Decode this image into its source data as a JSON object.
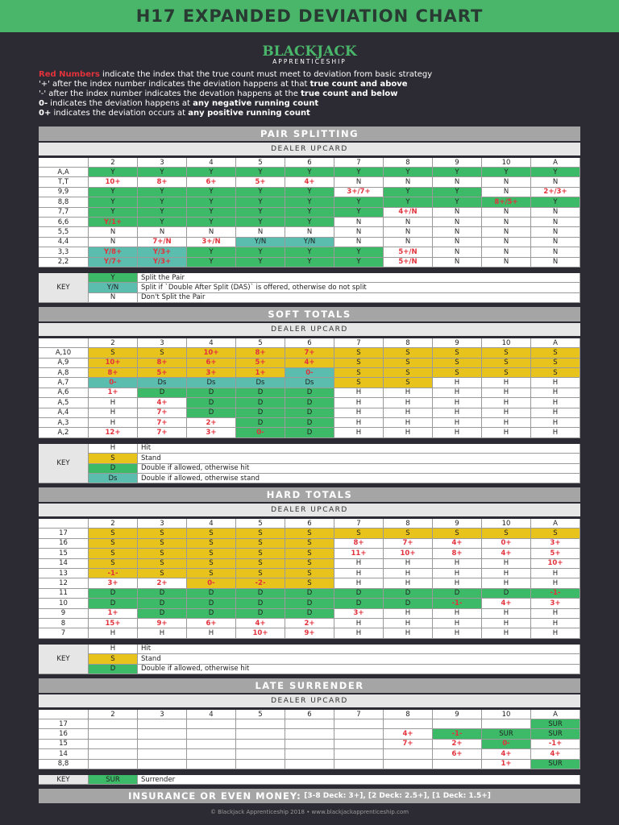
{
  "header": {
    "title": "H17 EXPANDED DEVIATION CHART",
    "logo": "BLACKJACK",
    "logo_sub": "APPRENTICESHIP"
  },
  "notes": [
    [
      "Red Numbers",
      " indicate the index that the true count must meet to deviation from basic strategy"
    ],
    [
      "'+' after the index number indicates the deviation happens at that ",
      "true count and above"
    ],
    [
      "'-' after the index number indicates the devation happens at the ",
      "true count and below"
    ],
    [
      "0-",
      " indicates the deviation happens at ",
      "any negative running count"
    ],
    [
      "0+",
      " indicates the deviation occurs at ",
      "any positive running count"
    ]
  ],
  "fill_colors": {
    "G": "#3dba68",
    "Y": "#e8c31c",
    "T": "#5bbdae",
    "W": "#ffffff"
  },
  "sections": [
    {
      "title": "PAIR SPLITTING",
      "subtitle": "DEALER UPCARD",
      "columns": [
        "2",
        "3",
        "4",
        "5",
        "6",
        "7",
        "8",
        "9",
        "10",
        "A"
      ],
      "rows": [
        {
          "label": "A,A",
          "cells": [
            "Y",
            "Y",
            "Y",
            "Y",
            "Y",
            "Y",
            "Y",
            "Y",
            "Y",
            "Y"
          ],
          "fills": "GGGGGGGGGG"
        },
        {
          "label": "T,T",
          "cells": [
            "10+",
            "8+",
            "6+",
            "5+",
            "4+",
            "N",
            "N",
            "N",
            "N",
            "N"
          ],
          "fills": "WWWWWWWWWW"
        },
        {
          "label": "9,9",
          "cells": [
            "Y",
            "Y",
            "Y",
            "Y",
            "Y",
            "3+/7+",
            "Y",
            "Y",
            "N",
            "2+/3+"
          ],
          "fills": "GGGGGWGGWW"
        },
        {
          "label": "8,8",
          "cells": [
            "Y",
            "Y",
            "Y",
            "Y",
            "Y",
            "Y",
            "Y",
            "Y",
            "8+/5+",
            "Y"
          ],
          "fills": "GGGGGGGGGG"
        },
        {
          "label": "7,7",
          "cells": [
            "Y",
            "Y",
            "Y",
            "Y",
            "Y",
            "Y",
            "4+/N",
            "N",
            "N",
            "N"
          ],
          "fills": "GGGGGGWWWW"
        },
        {
          "label": "6,6",
          "cells": [
            "Y/1+",
            "Y",
            "Y",
            "Y",
            "Y",
            "N",
            "N",
            "N",
            "N",
            "N"
          ],
          "fills": "GGGGGWWWWW"
        },
        {
          "label": "5,5",
          "cells": [
            "N",
            "N",
            "N",
            "N",
            "N",
            "N",
            "N",
            "N",
            "N",
            "N"
          ],
          "fills": "WWWWWWWWWW"
        },
        {
          "label": "4,4",
          "cells": [
            "N",
            "7+/N",
            "3+/N",
            "Y/N",
            "Y/N",
            "N",
            "N",
            "N",
            "N",
            "N"
          ],
          "fills": "WWWTTWWWWW"
        },
        {
          "label": "3,3",
          "cells": [
            "Y/8+",
            "Y/3+",
            "Y",
            "Y",
            "Y",
            "Y",
            "5+/N",
            "N",
            "N",
            "N"
          ],
          "fills": "TTGGGGWWWW"
        },
        {
          "label": "2,2",
          "cells": [
            "Y/7+",
            "Y/3+",
            "Y",
            "Y",
            "Y",
            "Y",
            "5+/N",
            "N",
            "N",
            "N"
          ],
          "fills": "TTGGGGWWWW"
        }
      ],
      "key_label": "KEY",
      "key": [
        {
          "code": "Y",
          "fill": "G",
          "text": "Split the Pair"
        },
        {
          "code": "Y/N",
          "fill": "T",
          "text": "Split if `Double After Split (DAS)` is offered, otherwise do not split"
        },
        {
          "code": "N",
          "fill": "W",
          "text": "Don't Split the Pair"
        }
      ]
    },
    {
      "title": "SOFT TOTALS",
      "subtitle": "DEALER UPCARD",
      "columns": [
        "2",
        "3",
        "4",
        "5",
        "6",
        "7",
        "8",
        "9",
        "10",
        "A"
      ],
      "rows": [
        {
          "label": "A,10",
          "cells": [
            "S",
            "S",
            "10+",
            "8+",
            "7+",
            "S",
            "S",
            "S",
            "S",
            "S"
          ],
          "fills": "YYYYYYYYYY"
        },
        {
          "label": "A,9",
          "cells": [
            "10+",
            "8+",
            "6+",
            "5+",
            "4+",
            "S",
            "S",
            "S",
            "S",
            "S"
          ],
          "fills": "YYYYYYYYYY"
        },
        {
          "label": "A,8",
          "cells": [
            "8+",
            "5+",
            "3+",
            "1+",
            "0-",
            "S",
            "S",
            "S",
            "S",
            "S"
          ],
          "fills": "YYYYTYYYYY"
        },
        {
          "label": "A,7",
          "cells": [
            "0-",
            "Ds",
            "Ds",
            "Ds",
            "Ds",
            "S",
            "S",
            "H",
            "H",
            "H"
          ],
          "fills": "TTTTTYYWWW"
        },
        {
          "label": "A,6",
          "cells": [
            "1+",
            "D",
            "D",
            "D",
            "D",
            "H",
            "H",
            "H",
            "H",
            "H"
          ],
          "fills": "WGGGGWWWWW"
        },
        {
          "label": "A,5",
          "cells": [
            "H",
            "4+",
            "D",
            "D",
            "D",
            "H",
            "H",
            "H",
            "H",
            "H"
          ],
          "fills": "WWGGGWWWWW"
        },
        {
          "label": "A,4",
          "cells": [
            "H",
            "7+",
            "D",
            "D",
            "D",
            "H",
            "H",
            "H",
            "H",
            "H"
          ],
          "fills": "WWGGGWWWWW"
        },
        {
          "label": "A,3",
          "cells": [
            "H",
            "7+",
            "2+",
            "D",
            "D",
            "H",
            "H",
            "H",
            "H",
            "H"
          ],
          "fills": "WWWGGWWWWW"
        },
        {
          "label": "A,2",
          "cells": [
            "12+",
            "7+",
            "3+",
            "0-",
            "D",
            "H",
            "H",
            "H",
            "H",
            "H"
          ],
          "fills": "WWWGGWWWWW"
        }
      ],
      "key_label": "KEY",
      "key": [
        {
          "code": "H",
          "fill": "W",
          "text": "Hit"
        },
        {
          "code": "S",
          "fill": "Y",
          "text": "Stand"
        },
        {
          "code": "D",
          "fill": "G",
          "text": "Double if allowed, otherwise hit"
        },
        {
          "code": "Ds",
          "fill": "T",
          "text": "Double if allowed, otherwise stand"
        }
      ]
    },
    {
      "title": "HARD TOTALS",
      "subtitle": "DEALER UPCARD",
      "columns": [
        "2",
        "3",
        "4",
        "5",
        "6",
        "7",
        "8",
        "9",
        "10",
        "A"
      ],
      "rows": [
        {
          "label": "17",
          "cells": [
            "S",
            "S",
            "S",
            "S",
            "S",
            "S",
            "S",
            "S",
            "S",
            "S"
          ],
          "fills": "YYYYYYYYYY"
        },
        {
          "label": "16",
          "cells": [
            "S",
            "S",
            "S",
            "S",
            "S",
            "8+",
            "7+",
            "4+",
            "0+",
            "3+"
          ],
          "fills": "YYYYYWWWWW"
        },
        {
          "label": "15",
          "cells": [
            "S",
            "S",
            "S",
            "S",
            "S",
            "11+",
            "10+",
            "8+",
            "4+",
            "5+"
          ],
          "fills": "YYYYYWWWWW"
        },
        {
          "label": "14",
          "cells": [
            "S",
            "S",
            "S",
            "S",
            "S",
            "H",
            "H",
            "H",
            "H",
            "10+"
          ],
          "fills": "YYYYYWWWWW"
        },
        {
          "label": "13",
          "cells": [
            "-1-",
            "S",
            "S",
            "S",
            "S",
            "H",
            "H",
            "H",
            "H",
            "H"
          ],
          "fills": "YYYYYWWWWW"
        },
        {
          "label": "12",
          "cells": [
            "3+",
            "2+",
            "0-",
            "-2-",
            "S",
            "H",
            "H",
            "H",
            "H",
            "H"
          ],
          "fills": "WWYYYWWWWW"
        },
        {
          "label": "11",
          "cells": [
            "D",
            "D",
            "D",
            "D",
            "D",
            "D",
            "D",
            "D",
            "D",
            "-1-"
          ],
          "fills": "GGGGGGGGGG"
        },
        {
          "label": "10",
          "cells": [
            "D",
            "D",
            "D",
            "D",
            "D",
            "D",
            "D",
            "-1-",
            "4+",
            "3+"
          ],
          "fills": "GGGGGGGGWW"
        },
        {
          "label": "9",
          "cells": [
            "1+",
            "D",
            "D",
            "D",
            "D",
            "3+",
            "H",
            "H",
            "H",
            "H"
          ],
          "fills": "WGGGGWWWWW"
        },
        {
          "label": "8",
          "cells": [
            "15+",
            "9+",
            "6+",
            "4+",
            "2+",
            "H",
            "H",
            "H",
            "H",
            "H"
          ],
          "fills": "WWWWWWWWWW"
        },
        {
          "label": "7",
          "cells": [
            "H",
            "H",
            "H",
            "10+",
            "9+",
            "H",
            "H",
            "H",
            "H",
            "H"
          ],
          "fills": "WWWWWWWWWW"
        }
      ],
      "key_label": "KEY",
      "key": [
        {
          "code": "H",
          "fill": "W",
          "text": "Hit"
        },
        {
          "code": "S",
          "fill": "Y",
          "text": "Stand"
        },
        {
          "code": "D",
          "fill": "G",
          "text": "Double if allowed, otherwise hit"
        }
      ]
    },
    {
      "title": "LATE SURRENDER",
      "subtitle": "DEALER UPCARD",
      "columns": [
        "2",
        "3",
        "4",
        "5",
        "6",
        "7",
        "8",
        "9",
        "10",
        "A"
      ],
      "rows": [
        {
          "label": "17",
          "cells": [
            null,
            null,
            null,
            null,
            null,
            null,
            null,
            null,
            null,
            "SUR"
          ],
          "fills": "WWWWWWWWWG"
        },
        {
          "label": "16",
          "cells": [
            null,
            null,
            null,
            null,
            null,
            null,
            "4+",
            "-1-",
            "SUR",
            "SUR"
          ],
          "fills": "WWWWWWWGGG"
        },
        {
          "label": "15",
          "cells": [
            null,
            null,
            null,
            null,
            null,
            null,
            "7+",
            "2+",
            "0-",
            "-1+"
          ],
          "fills": "WWWWWWWWGW"
        },
        {
          "label": "14",
          "cells": [
            null,
            null,
            null,
            null,
            null,
            null,
            null,
            "6+",
            "4+",
            "4+"
          ],
          "fills": "WWWWWWWWWW"
        },
        {
          "label": "8,8",
          "cells": [
            null,
            null,
            null,
            null,
            null,
            null,
            null,
            null,
            "1+",
            "SUR"
          ],
          "fills": "WWWWWWWWWG"
        }
      ],
      "key_label": "KEY",
      "key": [
        {
          "code": "SUR",
          "fill": "G",
          "text": "Surrender"
        }
      ]
    }
  ],
  "insurance": {
    "title": "INSURANCE OR EVEN MONEY:",
    "text": "[3-8 Deck: 3+], [2 Deck: 2.5+], [1 Deck: 1.5+]"
  },
  "footer": "© Blackjack Apprenticeship 2018 • www.blackjackapprenticeship.com"
}
